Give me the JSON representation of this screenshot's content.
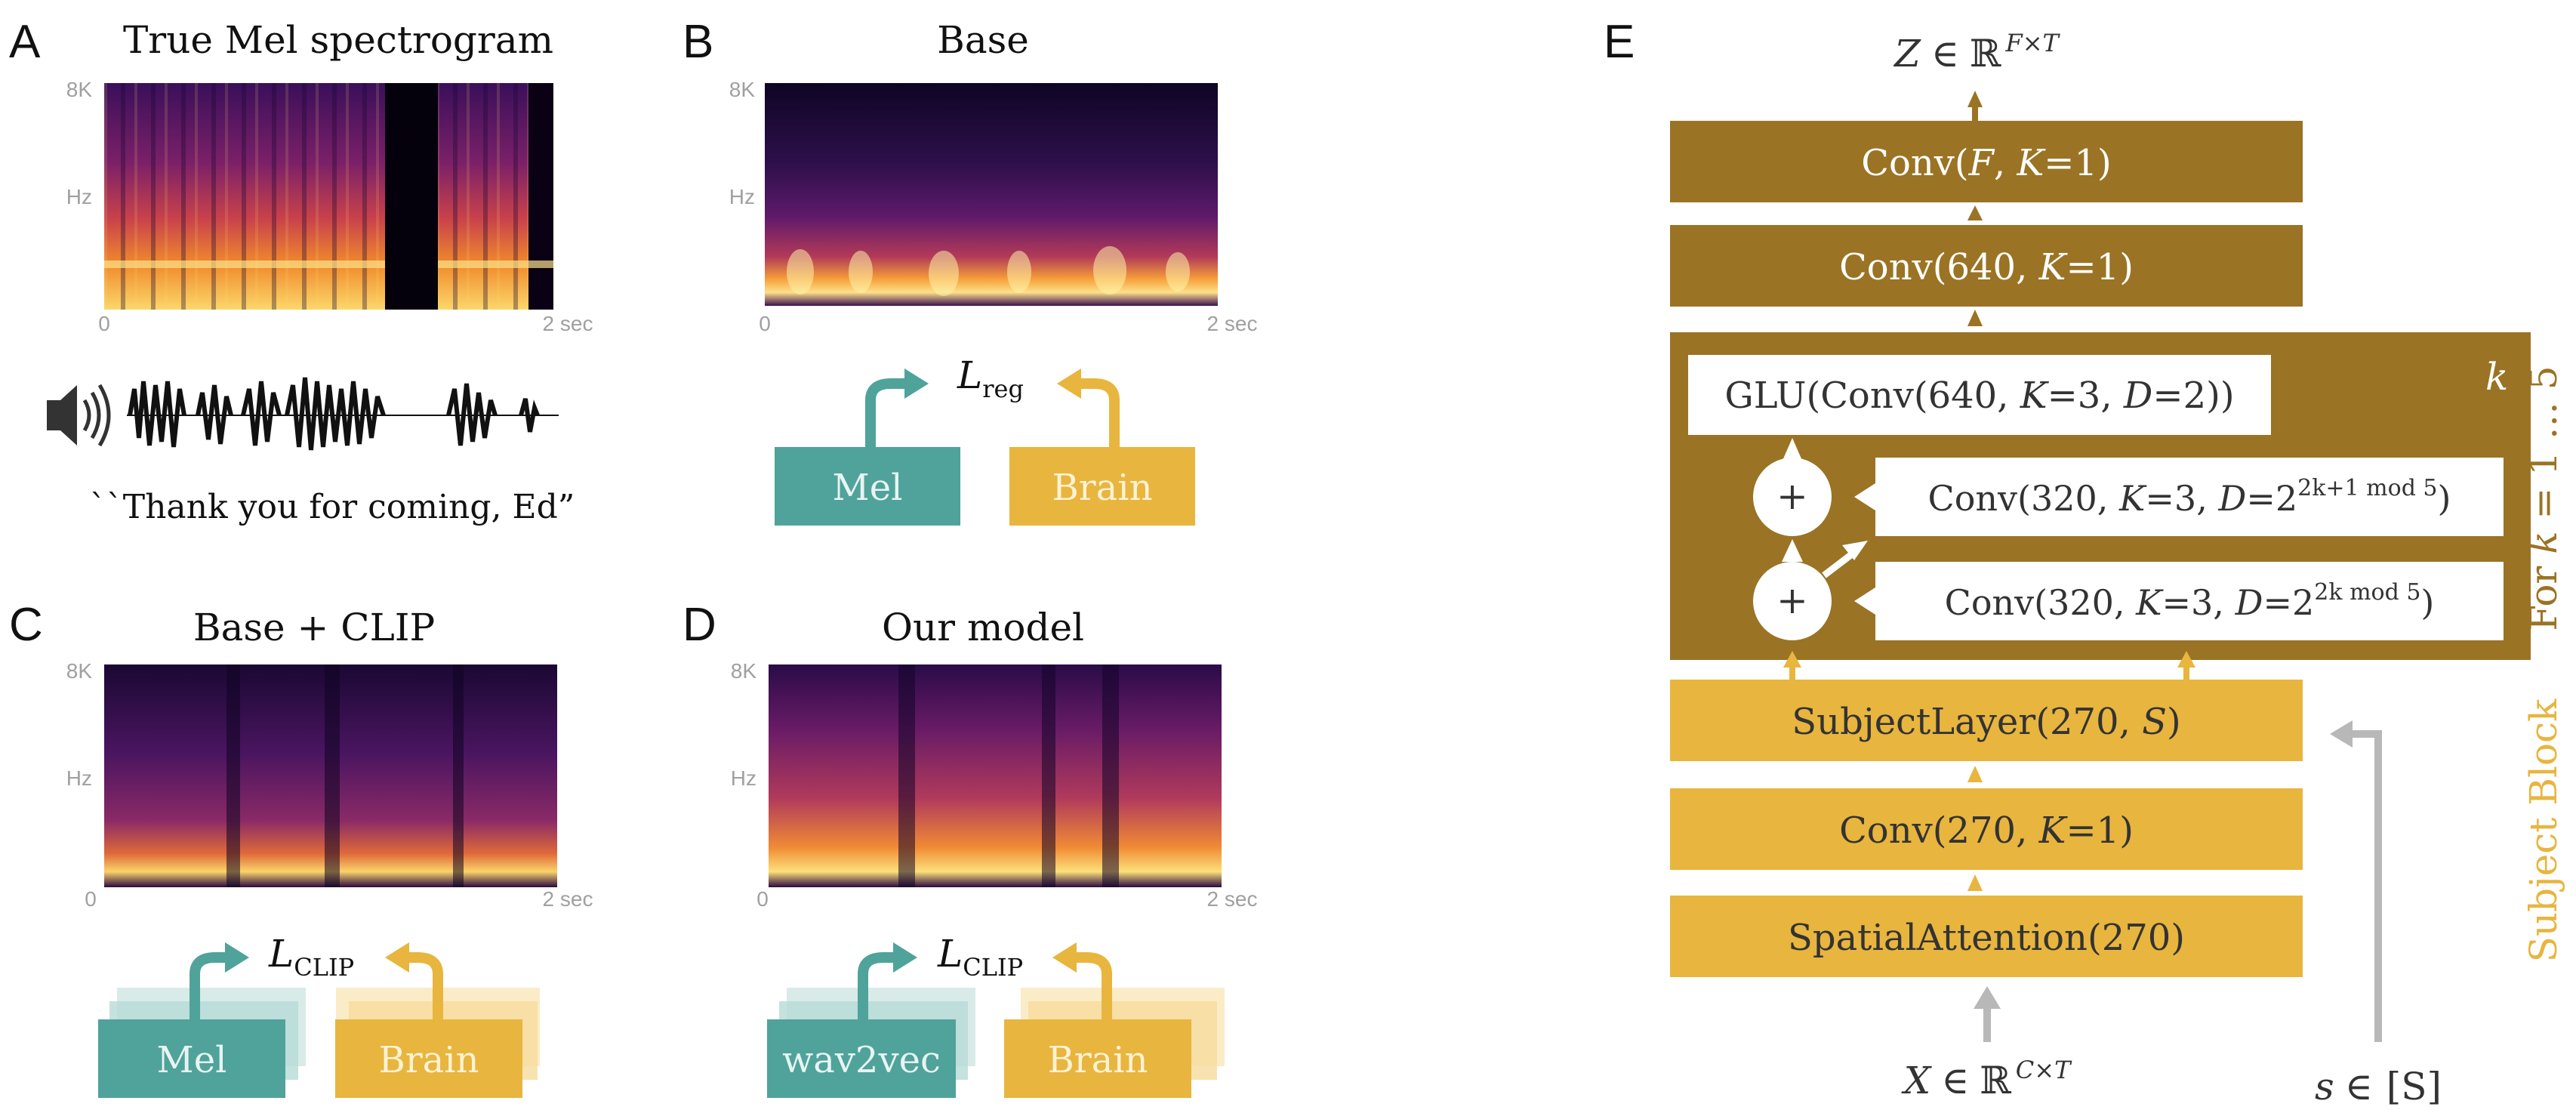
{
  "panels": {
    "A": {
      "letter": "A",
      "title": "True Mel spectrogram",
      "y_top": "8K",
      "y_unit": "Hz",
      "x_start": "0",
      "x_end": "2 sec",
      "caption": "``Thank you for coming, Ed”"
    },
    "B": {
      "letter": "B",
      "title": "Base",
      "y_top": "8K",
      "y_unit": "Hz",
      "x_start": "0",
      "x_end": "2 sec",
      "loss_main": "L",
      "loss_sub": "reg",
      "box_left": "Mel",
      "box_right": "Brain"
    },
    "C": {
      "letter": "C",
      "title": "Base + CLIP",
      "y_top": "8K",
      "y_unit": "Hz",
      "x_start": "0",
      "x_end": "2 sec",
      "loss_main": "L",
      "loss_sub": "CLIP",
      "box_left": "Mel",
      "box_right": "Brain"
    },
    "D": {
      "letter": "D",
      "title": "Our model",
      "y_top": "8K",
      "y_unit": "Hz",
      "x_start": "0",
      "x_end": "2 sec",
      "loss_main": "L",
      "loss_sub": "CLIP",
      "box_left": "wav2vec",
      "box_right": "Brain"
    },
    "E": {
      "letter": "E",
      "output": {
        "var": "Z",
        "in": "∈",
        "space": "ℝ",
        "sup": "F×T"
      },
      "conv_f": {
        "pre": "Conv(",
        "var": "F",
        "mid": ", ",
        "kvar": "K",
        "post": "=1)"
      },
      "conv_640": {
        "pre": "Conv(640, ",
        "kvar": "K",
        "post": "=1)"
      },
      "glu": {
        "pre": "GLU(Conv(640, ",
        "kvar": "K",
        "mid": "=3, ",
        "dvar": "D",
        "post": "=2))"
      },
      "conv_320_a": {
        "pre": "Conv(320, ",
        "kvar": "K",
        "mid": "=3, ",
        "dvar": "D",
        "eq": "=2",
        "sup": "2k+1 mod 5",
        "post": ")"
      },
      "conv_320_b": {
        "pre": "Conv(320, ",
        "kvar": "K",
        "mid": "=3, ",
        "dvar": "D",
        "eq": "=2",
        "sup": "2k mod 5",
        "post": ")"
      },
      "plus": "+",
      "k_label": "k",
      "loop_label": {
        "pre": "For ",
        "var": "k",
        "post": " = 1 … 5"
      },
      "subject_layer": {
        "pre": "SubjectLayer(270, ",
        "var": "S",
        "post": ")"
      },
      "conv_270": {
        "pre": "Conv(270, ",
        "kvar": "K",
        "post": "=1)"
      },
      "spatial": "SpatialAttention(270)",
      "subject_block": "Subject Block",
      "input_x": {
        "var": "X",
        "in": "∈",
        "space": "ℝ",
        "sup": "C×T"
      },
      "input_s": {
        "var": "s",
        "in": "∈",
        "bracket": "[S]"
      }
    }
  },
  "colors": {
    "dark_gold": "#9a7324",
    "light_gold": "#e8b53e",
    "teal": "#4fa39a",
    "gray_arrow": "#b8b8b8",
    "axis_gray": "#a0a0a0"
  }
}
